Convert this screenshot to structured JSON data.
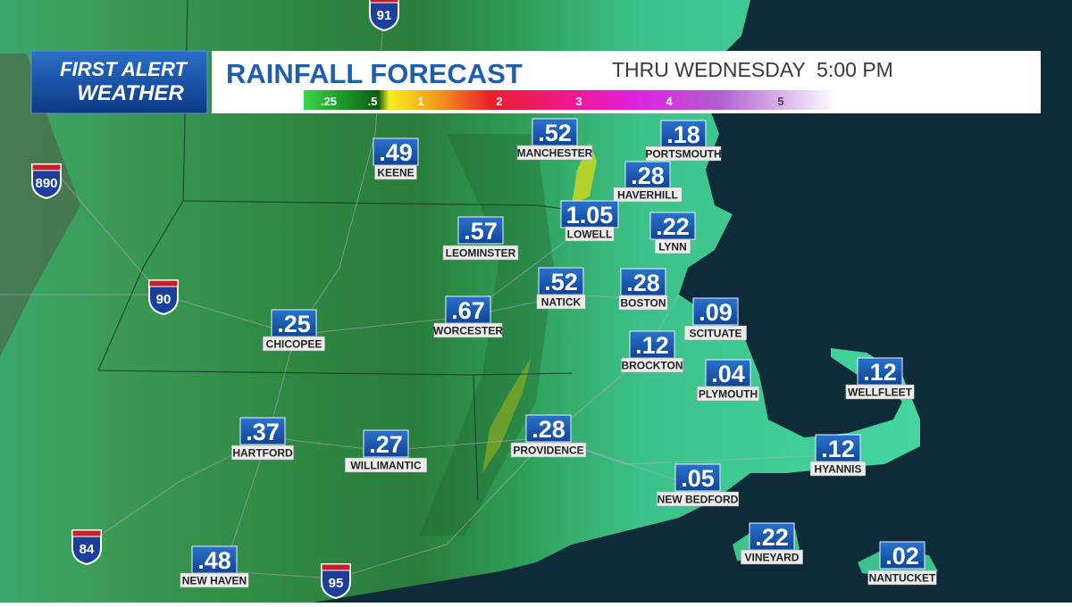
{
  "header": {
    "logo_line1": "FIRST ALERT",
    "logo_line2": "WEATHER",
    "title": "RAINFALL FORECAST",
    "valid_time": "THRU WEDNESDAY  5:00 PM"
  },
  "legend": {
    "labels": [
      ".25",
      ".5",
      "1",
      "2",
      "3",
      "4",
      "5"
    ]
  },
  "cities": [
    {
      "value": ".49",
      "name": "KEENE"
    },
    {
      "value": ".52",
      "name": "MANCHESTER"
    },
    {
      "value": ".18",
      "name": "PORTSMOUTH"
    },
    {
      "value": ".28",
      "name": "HAVERHILL"
    },
    {
      "value": "1.05",
      "name": "LOWELL"
    },
    {
      "value": ".22",
      "name": "LYNN"
    },
    {
      "value": ".57",
      "name": "LEOMINSTER"
    },
    {
      "value": ".52",
      "name": "NATICK"
    },
    {
      "value": ".28",
      "name": "BOSTON"
    },
    {
      "value": ".67",
      "name": "WORCESTER"
    },
    {
      "value": ".25",
      "name": "CHICOPEE"
    },
    {
      "value": ".09",
      "name": "SCITUATE"
    },
    {
      "value": ".12",
      "name": "BROCKTON"
    },
    {
      "value": ".04",
      "name": "PLYMOUTH"
    },
    {
      "value": ".12",
      "name": "WELLFLEET"
    },
    {
      "value": ".37",
      "name": "HARTFORD"
    },
    {
      "value": ".27",
      "name": "WILLIMANTIC"
    },
    {
      "value": ".28",
      "name": "PROVIDENCE"
    },
    {
      "value": ".12",
      "name": "HYANNIS"
    },
    {
      "value": ".05",
      "name": "NEW BEDFORD"
    },
    {
      "value": ".22",
      "name": "VINEYARD"
    },
    {
      "value": ".48",
      "name": "NEW HAVEN"
    },
    {
      "value": ".02",
      "name": "NANTUCKET"
    }
  ],
  "highways": [
    "91",
    "890",
    "90",
    "84",
    "95"
  ]
}
